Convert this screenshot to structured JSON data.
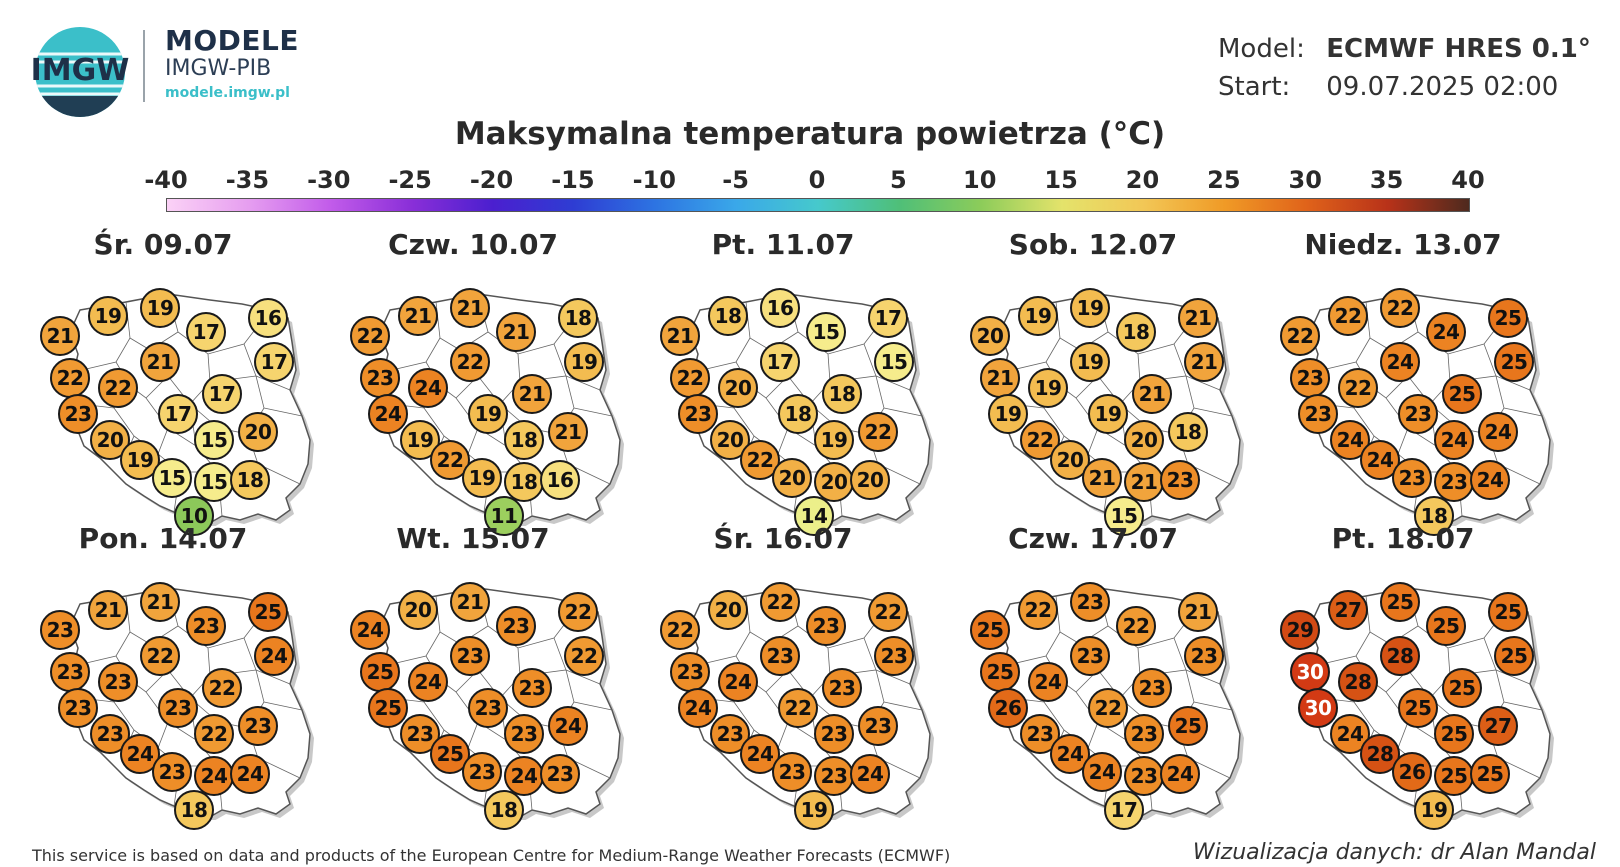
{
  "header": {
    "logo_text": "IMGW",
    "brand_line1": "MODELE",
    "brand_line2": "IMGW-PIB",
    "brand_url": "modele.imgw.pl",
    "model_label": "Model:",
    "model_value": "ECMWF HRES 0.1°",
    "start_label": "Start:",
    "start_value": "09.07.2025 02:00"
  },
  "title": "Maksymalna temperatura powietrza (°C)",
  "scale": {
    "ticks": [
      "-40",
      "-35",
      "-30",
      "-25",
      "-20",
      "-15",
      "-10",
      "-5",
      "0",
      "5",
      "10",
      "15",
      "20",
      "25",
      "30",
      "35",
      "40"
    ],
    "min": -40,
    "max": 40
  },
  "days": [
    {
      "label": "Śr. 09.07",
      "values": [
        21,
        19,
        19,
        17,
        16,
        17,
        22,
        22,
        21,
        17,
        23,
        17,
        20,
        15,
        20,
        19,
        15,
        15,
        18,
        10
      ]
    },
    {
      "label": "Czw. 10.07",
      "values": [
        22,
        21,
        21,
        21,
        18,
        19,
        23,
        24,
        22,
        21,
        24,
        19,
        21,
        18,
        19,
        22,
        19,
        18,
        16,
        11
      ]
    },
    {
      "label": "Pt. 11.07",
      "values": [
        21,
        18,
        16,
        15,
        17,
        15,
        22,
        20,
        17,
        18,
        23,
        18,
        22,
        19,
        20,
        22,
        20,
        20,
        20,
        14
      ]
    },
    {
      "label": "Sob. 12.07",
      "values": [
        20,
        19,
        19,
        18,
        21,
        21,
        21,
        19,
        19,
        21,
        19,
        19,
        18,
        20,
        22,
        20,
        21,
        21,
        23,
        15
      ]
    },
    {
      "label": "Niedz. 13.07",
      "values": [
        22,
        22,
        22,
        24,
        25,
        25,
        23,
        22,
        24,
        25,
        23,
        23,
        24,
        24,
        24,
        24,
        23,
        23,
        24,
        18
      ]
    },
    {
      "label": "Pon. 14.07",
      "values": [
        23,
        21,
        21,
        23,
        25,
        24,
        23,
        23,
        22,
        22,
        23,
        23,
        23,
        22,
        23,
        24,
        23,
        24,
        24,
        18
      ]
    },
    {
      "label": "Wt. 15.07",
      "values": [
        24,
        20,
        21,
        23,
        22,
        22,
        25,
        24,
        23,
        23,
        25,
        23,
        24,
        23,
        23,
        25,
        23,
        24,
        23,
        18
      ]
    },
    {
      "label": "Śr. 16.07",
      "values": [
        22,
        20,
        22,
        23,
        22,
        23,
        23,
        24,
        23,
        23,
        24,
        22,
        23,
        23,
        23,
        24,
        23,
        23,
        24,
        19
      ]
    },
    {
      "label": "Czw. 17.07",
      "values": [
        25,
        22,
        23,
        22,
        21,
        23,
        25,
        24,
        23,
        23,
        26,
        22,
        25,
        23,
        23,
        24,
        24,
        23,
        24,
        17
      ]
    },
    {
      "label": "Pt. 18.07",
      "values": [
        29,
        27,
        25,
        25,
        25,
        25,
        30,
        28,
        28,
        25,
        30,
        25,
        27,
        25,
        24,
        28,
        26,
        25,
        25,
        19
      ]
    }
  ],
  "footer": {
    "source": "This service is based on data and products of the European Centre for Medium-Range Weather Forecasts (ECMWF)",
    "credit": "Wizualizacja danych: dr Alan Mandal"
  }
}
